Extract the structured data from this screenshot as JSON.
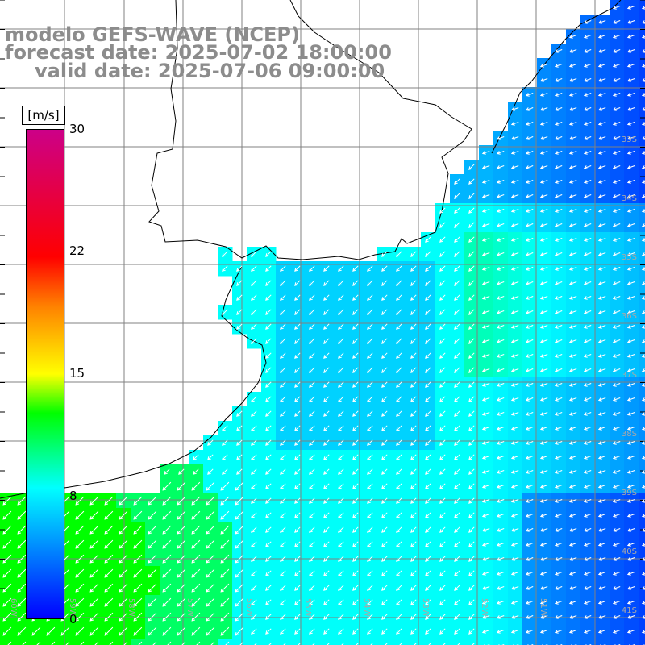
{
  "title": {
    "line1": "modelo GEFS-WAVE (NCEP)",
    "line2": "forecast date: 2025-07-02 18:00:00",
    "line3": "valid date: 2025-07-06 09:00:00"
  },
  "legend": {
    "unit": "[m/s]",
    "ticks": [
      "30",
      "22",
      "15",
      "8",
      "0"
    ],
    "range": [
      0,
      30
    ],
    "colors": [
      "#0000ff",
      "#00bfff",
      "#00ffff",
      "#00ff00",
      "#ffff00",
      "#ff8000",
      "#ff0000",
      "#cc0088"
    ]
  },
  "map": {
    "field": "wind speed",
    "lat_labels": [
      "33S",
      "34S",
      "35S",
      "36S",
      "37S",
      "38S",
      "39S",
      "40S",
      "41S"
    ],
    "lon_labels": [
      "60W",
      "59W",
      "58W",
      "57W",
      "56W",
      "55W",
      "54W",
      "53W",
      "52W",
      "51W"
    ],
    "land_color": "#ffffff",
    "grid_color": "#808080",
    "coast_color": "#000000",
    "arrow_color": "#ffffff"
  }
}
